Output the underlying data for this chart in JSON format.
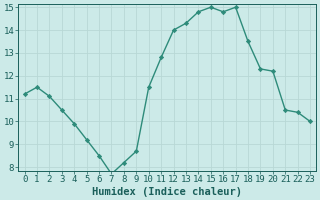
{
  "x": [
    0,
    1,
    2,
    3,
    4,
    5,
    6,
    7,
    8,
    9,
    10,
    11,
    12,
    13,
    14,
    15,
    16,
    17,
    18,
    19,
    20,
    21,
    22,
    23
  ],
  "y": [
    11.2,
    11.5,
    11.1,
    10.5,
    9.9,
    9.2,
    8.5,
    7.7,
    8.2,
    8.7,
    11.5,
    12.8,
    14.0,
    14.3,
    14.8,
    15.0,
    14.8,
    15.0,
    13.5,
    12.3,
    12.2,
    10.5,
    10.4,
    10.0
  ],
  "line_color": "#2e8b7a",
  "marker_color": "#2e8b7a",
  "bg_color": "#cceae8",
  "grid_color": "#b8d8d5",
  "xlabel": "Humidex (Indice chaleur)",
  "ylim_min": 8,
  "ylim_max": 15,
  "xlim_min": -0.5,
  "xlim_max": 23.5,
  "yticks": [
    8,
    9,
    10,
    11,
    12,
    13,
    14,
    15
  ],
  "xticks": [
    0,
    1,
    2,
    3,
    4,
    5,
    6,
    7,
    8,
    9,
    10,
    11,
    12,
    13,
    14,
    15,
    16,
    17,
    18,
    19,
    20,
    21,
    22,
    23
  ],
  "font_color": "#1a5f5a",
  "xlabel_fontsize": 7.5,
  "tick_fontsize": 6.5,
  "linewidth": 1.0,
  "markersize": 2.2
}
